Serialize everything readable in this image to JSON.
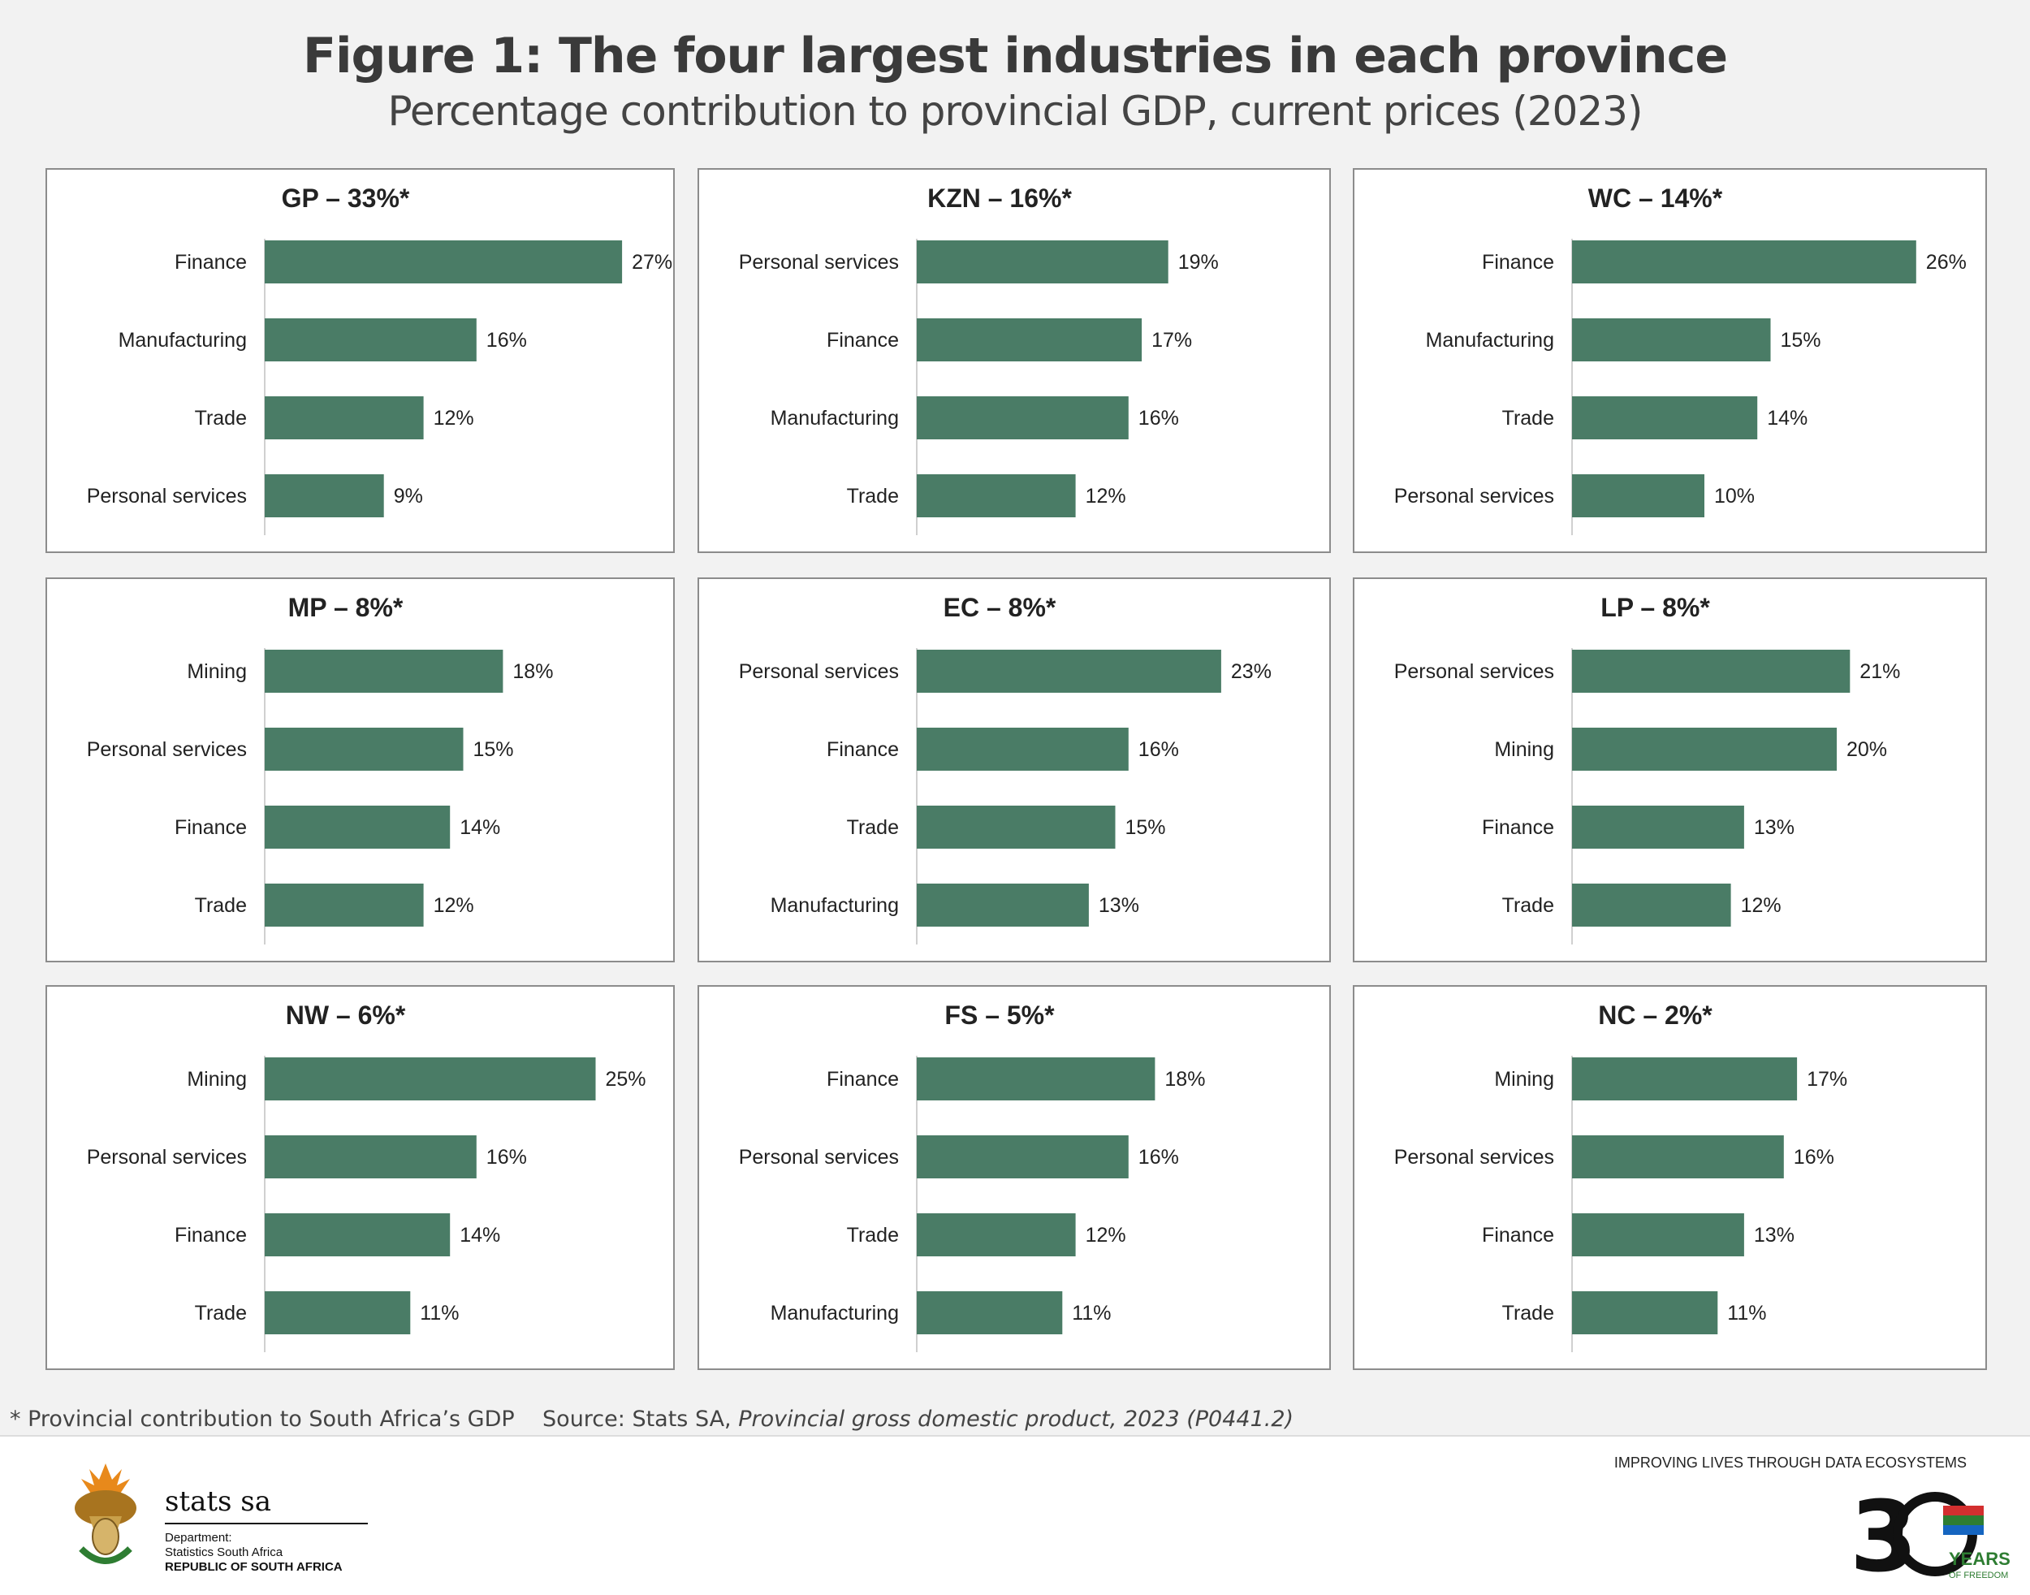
{
  "title": "Figure 1: The four largest industries in each province",
  "subtitle": "Percentage contribution to provincial GDP, current prices (2023)",
  "colors": {
    "bar": "#4a7c66",
    "axis": "#d0d0d0",
    "background": "#f2f2f2"
  },
  "chart_data": [
    {
      "type": "bar",
      "orientation": "horizontal",
      "title": "GP – 33%*",
      "categories": [
        "Finance",
        "Manufacturing",
        "Trade",
        "Personal services"
      ],
      "values": [
        27,
        16,
        12,
        9
      ],
      "data_labels": [
        "27%",
        "16%",
        "12%",
        "9%"
      ]
    },
    {
      "type": "bar",
      "orientation": "horizontal",
      "title": "KZN – 16%*",
      "categories": [
        "Personal services",
        "Finance",
        "Manufacturing",
        "Trade"
      ],
      "values": [
        19,
        17,
        16,
        12
      ],
      "data_labels": [
        "19%",
        "17%",
        "16%",
        "12%"
      ]
    },
    {
      "type": "bar",
      "orientation": "horizontal",
      "title": "WC – 14%*",
      "categories": [
        "Finance",
        "Manufacturing",
        "Trade",
        "Personal services"
      ],
      "values": [
        26,
        15,
        14,
        10
      ],
      "data_labels": [
        "26%",
        "15%",
        "14%",
        "10%"
      ]
    },
    {
      "type": "bar",
      "orientation": "horizontal",
      "title": "MP – 8%*",
      "categories": [
        "Mining",
        "Personal services",
        "Finance",
        "Trade"
      ],
      "values": [
        18,
        15,
        14,
        12
      ],
      "data_labels": [
        "18%",
        "15%",
        "14%",
        "12%"
      ]
    },
    {
      "type": "bar",
      "orientation": "horizontal",
      "title": "EC – 8%*",
      "categories": [
        "Personal services",
        "Finance",
        "Trade",
        "Manufacturing"
      ],
      "values": [
        23,
        16,
        15,
        13
      ],
      "data_labels": [
        "23%",
        "16%",
        "15%",
        "13%"
      ]
    },
    {
      "type": "bar",
      "orientation": "horizontal",
      "title": "LP – 8%*",
      "categories": [
        "Personal services",
        "Mining",
        "Finance",
        "Trade"
      ],
      "values": [
        21,
        20,
        13,
        12
      ],
      "data_labels": [
        "21%",
        "20%",
        "13%",
        "12%"
      ]
    },
    {
      "type": "bar",
      "orientation": "horizontal",
      "title": "NW – 6%*",
      "categories": [
        "Mining",
        "Personal services",
        "Finance",
        "Trade"
      ],
      "values": [
        25,
        16,
        14,
        11
      ],
      "data_labels": [
        "25%",
        "16%",
        "14%",
        "11%"
      ]
    },
    {
      "type": "bar",
      "orientation": "horizontal",
      "title": "FS – 5%*",
      "categories": [
        "Finance",
        "Personal services",
        "Trade",
        "Manufacturing"
      ],
      "values": [
        18,
        16,
        12,
        11
      ],
      "data_labels": [
        "18%",
        "16%",
        "12%",
        "11%"
      ]
    },
    {
      "type": "bar",
      "orientation": "horizontal",
      "title": "NC – 2%*",
      "categories": [
        "Mining",
        "Personal services",
        "Finance",
        "Trade"
      ],
      "values": [
        17,
        16,
        13,
        11
      ],
      "data_labels": [
        "17%",
        "16%",
        "13%",
        "11%"
      ]
    }
  ],
  "footnote": {
    "note": "* Provincial contribution to South Africa’s GDP",
    "source_prefix": "Source: Stats SA, ",
    "source_title": "Provincial gross domestic product, 2023 (P0441.2)"
  },
  "footer": {
    "tagline": "IMPROVING LIVES THROUGH DATA ECOSYSTEMS",
    "brand": "stats sa",
    "dept_label": "Department:",
    "dept_name": "Statistics South Africa",
    "country": "REPUBLIC OF SOUTH AFRICA",
    "anniversary_logo": "30 YEARS OF FREEDOM",
    "coat_of_arms": "coat-of-arms-icon"
  }
}
